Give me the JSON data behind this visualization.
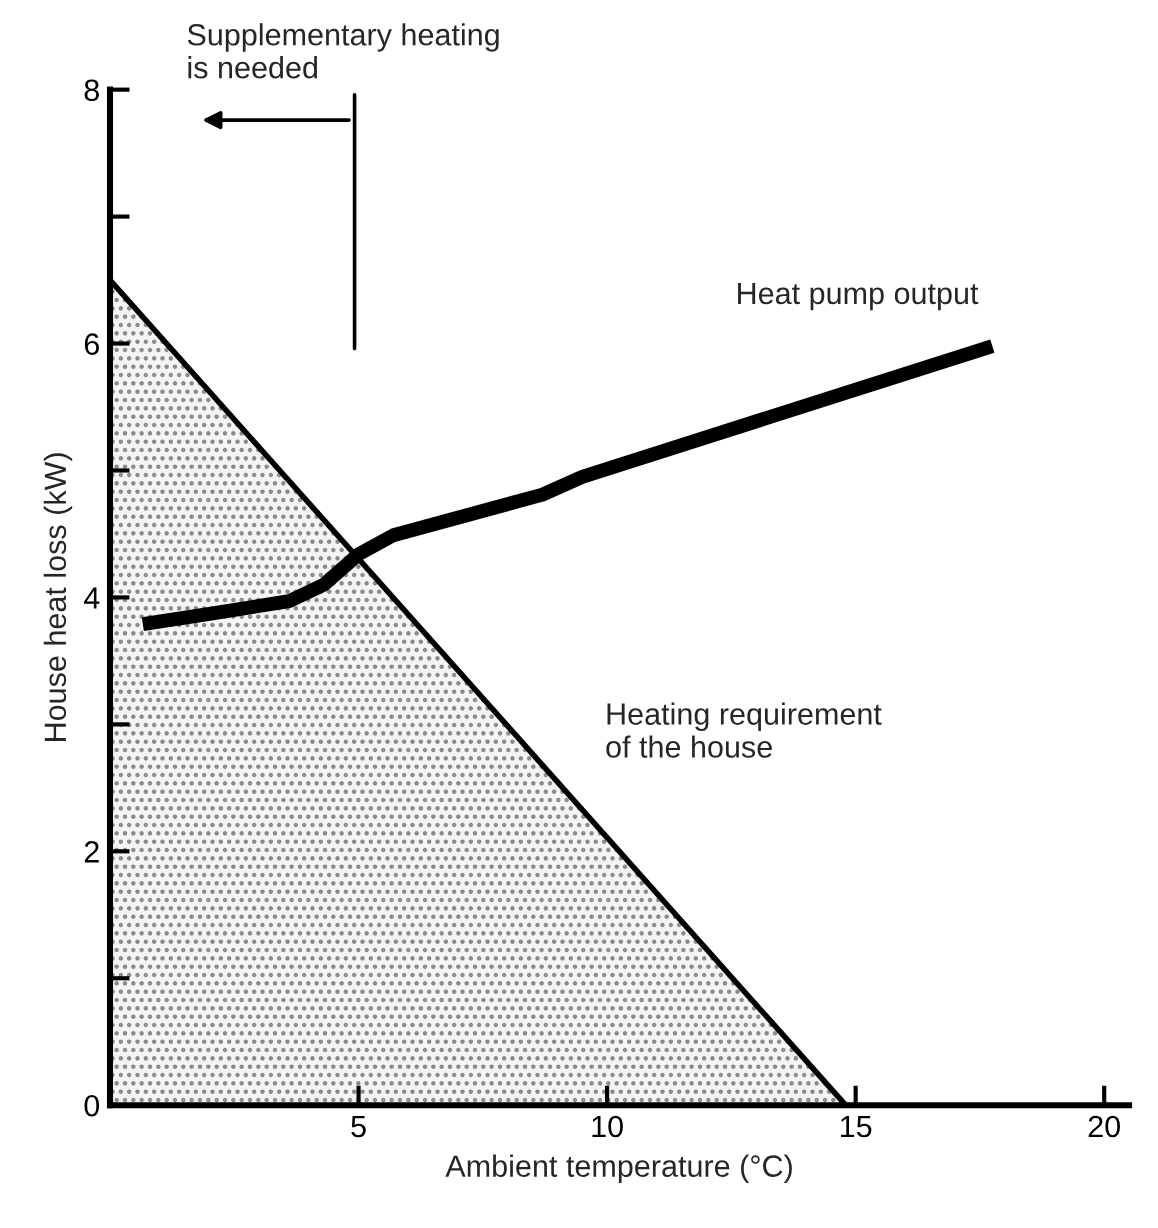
{
  "chart_data": {
    "type": "line",
    "xlabel": "Ambient temperature (°C)",
    "ylabel": "House heat loss (kW)",
    "xlim": [
      0,
      20.5
    ],
    "ylim": [
      0,
      8
    ],
    "xticks": [
      5,
      10,
      15,
      20
    ],
    "yticks": [
      0,
      {
        "value": 1,
        "label": null
      },
      2,
      {
        "value": 3,
        "label": null
      },
      4,
      {
        "value": 5,
        "label": null
      },
      6,
      {
        "value": 7,
        "label": null
      },
      8
    ],
    "grid": false,
    "legend": false,
    "series": [
      {
        "name": "Heating requirement\nof the house",
        "type": "area",
        "color": "#000000",
        "x": [
          0,
          14.8
        ],
        "values": [
          6.5,
          0
        ]
      },
      {
        "name": "Heat pump output",
        "color": "#000000",
        "x": [
          0.66,
          2.0,
          3.6,
          4.3,
          5.0,
          5.7,
          8.7,
          9.5,
          17.75
        ],
        "values": [
          3.79,
          3.87,
          3.97,
          4.1,
          4.34,
          4.49,
          4.81,
          4.95,
          5.98
        ]
      }
    ],
    "annotations": [
      "Supplementary heating\nis needed"
    ]
  }
}
